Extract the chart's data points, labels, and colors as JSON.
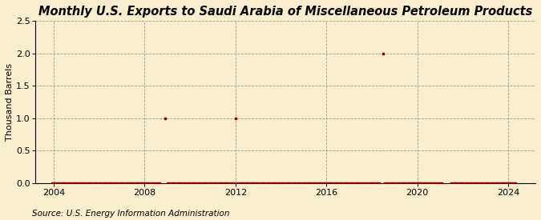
{
  "title": "Monthly U.S. Exports to Saudi Arabia of Miscellaneous Petroleum Products",
  "ylabel": "Thousand Barrels",
  "source": "Source: U.S. Energy Information Administration",
  "background_color": "#faeecf",
  "marker_color": "#8b0000",
  "ylim": [
    0,
    2.5
  ],
  "yticks": [
    0.0,
    0.5,
    1.0,
    1.5,
    2.0,
    2.5
  ],
  "xlim_start": 2003.2,
  "xlim_end": 2025.2,
  "xticks": [
    2004,
    2008,
    2012,
    2016,
    2020,
    2024
  ],
  "title_fontsize": 10.5,
  "ylabel_fontsize": 8,
  "tick_fontsize": 8,
  "source_fontsize": 7.5,
  "data_points": [
    {
      "date": 2003.917,
      "value": 0
    },
    {
      "date": 2004.0,
      "value": 0
    },
    {
      "date": 2004.083,
      "value": 0
    },
    {
      "date": 2004.167,
      "value": 0
    },
    {
      "date": 2004.25,
      "value": 0
    },
    {
      "date": 2004.333,
      "value": 0
    },
    {
      "date": 2004.417,
      "value": 0
    },
    {
      "date": 2004.5,
      "value": 0
    },
    {
      "date": 2004.583,
      "value": 0
    },
    {
      "date": 2004.667,
      "value": 0
    },
    {
      "date": 2004.75,
      "value": 0
    },
    {
      "date": 2004.833,
      "value": 0
    },
    {
      "date": 2004.917,
      "value": 0
    },
    {
      "date": 2005.0,
      "value": 0
    },
    {
      "date": 2005.083,
      "value": 0
    },
    {
      "date": 2005.167,
      "value": 0
    },
    {
      "date": 2005.25,
      "value": 0
    },
    {
      "date": 2005.333,
      "value": 0
    },
    {
      "date": 2005.417,
      "value": 0
    },
    {
      "date": 2005.5,
      "value": 0
    },
    {
      "date": 2005.583,
      "value": 0
    },
    {
      "date": 2005.667,
      "value": 0
    },
    {
      "date": 2005.75,
      "value": 0
    },
    {
      "date": 2005.833,
      "value": 0
    },
    {
      "date": 2005.917,
      "value": 0
    },
    {
      "date": 2006.0,
      "value": 0
    },
    {
      "date": 2006.083,
      "value": 0
    },
    {
      "date": 2006.167,
      "value": 0
    },
    {
      "date": 2006.25,
      "value": 0
    },
    {
      "date": 2006.333,
      "value": 0
    },
    {
      "date": 2006.417,
      "value": 0
    },
    {
      "date": 2006.5,
      "value": 0
    },
    {
      "date": 2006.583,
      "value": 0
    },
    {
      "date": 2006.667,
      "value": 0
    },
    {
      "date": 2006.75,
      "value": 0
    },
    {
      "date": 2006.833,
      "value": 0
    },
    {
      "date": 2006.917,
      "value": 0
    },
    {
      "date": 2007.0,
      "value": 0
    },
    {
      "date": 2007.083,
      "value": 0
    },
    {
      "date": 2007.167,
      "value": 0
    },
    {
      "date": 2007.25,
      "value": 0
    },
    {
      "date": 2007.333,
      "value": 0
    },
    {
      "date": 2007.417,
      "value": 0
    },
    {
      "date": 2007.5,
      "value": 0
    },
    {
      "date": 2007.583,
      "value": 0
    },
    {
      "date": 2007.667,
      "value": 0
    },
    {
      "date": 2007.75,
      "value": 0
    },
    {
      "date": 2007.833,
      "value": 0
    },
    {
      "date": 2007.917,
      "value": 0
    },
    {
      "date": 2008.0,
      "value": 0
    },
    {
      "date": 2008.083,
      "value": 0
    },
    {
      "date": 2008.167,
      "value": 0
    },
    {
      "date": 2008.25,
      "value": 0
    },
    {
      "date": 2008.333,
      "value": 0
    },
    {
      "date": 2008.417,
      "value": 0
    },
    {
      "date": 2008.5,
      "value": 0
    },
    {
      "date": 2008.583,
      "value": 0
    },
    {
      "date": 2008.667,
      "value": 0
    },
    {
      "date": 2008.917,
      "value": 1.0
    },
    {
      "date": 2009.0,
      "value": 0
    },
    {
      "date": 2009.083,
      "value": 0
    },
    {
      "date": 2009.167,
      "value": 0
    },
    {
      "date": 2009.25,
      "value": 0
    },
    {
      "date": 2009.333,
      "value": 0
    },
    {
      "date": 2009.417,
      "value": 0
    },
    {
      "date": 2009.5,
      "value": 0
    },
    {
      "date": 2009.583,
      "value": 0
    },
    {
      "date": 2009.667,
      "value": 0
    },
    {
      "date": 2009.75,
      "value": 0
    },
    {
      "date": 2009.833,
      "value": 0
    },
    {
      "date": 2009.917,
      "value": 0
    },
    {
      "date": 2010.0,
      "value": 0
    },
    {
      "date": 2010.083,
      "value": 0
    },
    {
      "date": 2010.167,
      "value": 0
    },
    {
      "date": 2010.25,
      "value": 0
    },
    {
      "date": 2010.333,
      "value": 0
    },
    {
      "date": 2010.417,
      "value": 0
    },
    {
      "date": 2010.5,
      "value": 0
    },
    {
      "date": 2010.583,
      "value": 0
    },
    {
      "date": 2010.667,
      "value": 0
    },
    {
      "date": 2010.75,
      "value": 0
    },
    {
      "date": 2010.833,
      "value": 0
    },
    {
      "date": 2010.917,
      "value": 0
    },
    {
      "date": 2011.0,
      "value": 0
    },
    {
      "date": 2011.083,
      "value": 0
    },
    {
      "date": 2011.167,
      "value": 0
    },
    {
      "date": 2011.25,
      "value": 0
    },
    {
      "date": 2011.333,
      "value": 0
    },
    {
      "date": 2011.417,
      "value": 0
    },
    {
      "date": 2011.5,
      "value": 0
    },
    {
      "date": 2011.583,
      "value": 0
    },
    {
      "date": 2011.667,
      "value": 0
    },
    {
      "date": 2011.75,
      "value": 0
    },
    {
      "date": 2011.833,
      "value": 0
    },
    {
      "date": 2011.917,
      "value": 0
    },
    {
      "date": 2012.0,
      "value": 1.0
    },
    {
      "date": 2012.083,
      "value": 0
    },
    {
      "date": 2012.167,
      "value": 0
    },
    {
      "date": 2012.25,
      "value": 0
    },
    {
      "date": 2012.333,
      "value": 0
    },
    {
      "date": 2012.417,
      "value": 0
    },
    {
      "date": 2012.5,
      "value": 0
    },
    {
      "date": 2012.583,
      "value": 0
    },
    {
      "date": 2012.667,
      "value": 0
    },
    {
      "date": 2012.75,
      "value": 0
    },
    {
      "date": 2012.833,
      "value": 0
    },
    {
      "date": 2012.917,
      "value": 0
    },
    {
      "date": 2013.0,
      "value": 0
    },
    {
      "date": 2013.083,
      "value": 0
    },
    {
      "date": 2013.167,
      "value": 0
    },
    {
      "date": 2013.25,
      "value": 0
    },
    {
      "date": 2013.333,
      "value": 0
    },
    {
      "date": 2013.417,
      "value": 0
    },
    {
      "date": 2013.5,
      "value": 0
    },
    {
      "date": 2013.583,
      "value": 0
    },
    {
      "date": 2013.667,
      "value": 0
    },
    {
      "date": 2013.75,
      "value": 0
    },
    {
      "date": 2013.833,
      "value": 0
    },
    {
      "date": 2013.917,
      "value": 0
    },
    {
      "date": 2014.0,
      "value": 0
    },
    {
      "date": 2014.083,
      "value": 0
    },
    {
      "date": 2014.167,
      "value": 0
    },
    {
      "date": 2014.25,
      "value": 0
    },
    {
      "date": 2014.333,
      "value": 0
    },
    {
      "date": 2014.417,
      "value": 0
    },
    {
      "date": 2014.5,
      "value": 0
    },
    {
      "date": 2014.583,
      "value": 0
    },
    {
      "date": 2014.667,
      "value": 0
    },
    {
      "date": 2014.75,
      "value": 0
    },
    {
      "date": 2014.833,
      "value": 0
    },
    {
      "date": 2014.917,
      "value": 0
    },
    {
      "date": 2015.0,
      "value": 0
    },
    {
      "date": 2015.083,
      "value": 0
    },
    {
      "date": 2015.167,
      "value": 0
    },
    {
      "date": 2015.25,
      "value": 0
    },
    {
      "date": 2015.333,
      "value": 0
    },
    {
      "date": 2015.417,
      "value": 0
    },
    {
      "date": 2015.5,
      "value": 0
    },
    {
      "date": 2015.583,
      "value": 0
    },
    {
      "date": 2015.667,
      "value": 0
    },
    {
      "date": 2015.75,
      "value": 0
    },
    {
      "date": 2015.833,
      "value": 0
    },
    {
      "date": 2015.917,
      "value": 0
    },
    {
      "date": 2016.0,
      "value": 0
    },
    {
      "date": 2016.083,
      "value": 0
    },
    {
      "date": 2016.167,
      "value": 0
    },
    {
      "date": 2016.25,
      "value": 0
    },
    {
      "date": 2016.333,
      "value": 0
    },
    {
      "date": 2016.417,
      "value": 0
    },
    {
      "date": 2016.5,
      "value": 0
    },
    {
      "date": 2016.583,
      "value": 0
    },
    {
      "date": 2016.667,
      "value": 0
    },
    {
      "date": 2016.75,
      "value": 0
    },
    {
      "date": 2016.833,
      "value": 0
    },
    {
      "date": 2016.917,
      "value": 0
    },
    {
      "date": 2017.0,
      "value": 0
    },
    {
      "date": 2017.083,
      "value": 0
    },
    {
      "date": 2017.167,
      "value": 0
    },
    {
      "date": 2017.25,
      "value": 0
    },
    {
      "date": 2017.333,
      "value": 0
    },
    {
      "date": 2017.417,
      "value": 0
    },
    {
      "date": 2017.5,
      "value": 0
    },
    {
      "date": 2017.583,
      "value": 0
    },
    {
      "date": 2017.667,
      "value": 0
    },
    {
      "date": 2017.75,
      "value": 0
    },
    {
      "date": 2017.833,
      "value": 0
    },
    {
      "date": 2017.917,
      "value": 0
    },
    {
      "date": 2018.0,
      "value": 0
    },
    {
      "date": 2018.083,
      "value": 0
    },
    {
      "date": 2018.167,
      "value": 0
    },
    {
      "date": 2018.25,
      "value": 0
    },
    {
      "date": 2018.333,
      "value": 0
    },
    {
      "date": 2018.5,
      "value": 2.0
    },
    {
      "date": 2018.583,
      "value": 0
    },
    {
      "date": 2018.667,
      "value": 0
    },
    {
      "date": 2018.75,
      "value": 0
    },
    {
      "date": 2018.833,
      "value": 0
    },
    {
      "date": 2018.917,
      "value": 0
    },
    {
      "date": 2019.0,
      "value": 0
    },
    {
      "date": 2019.083,
      "value": 0
    },
    {
      "date": 2019.167,
      "value": 0
    },
    {
      "date": 2019.25,
      "value": 0
    },
    {
      "date": 2019.333,
      "value": 0
    },
    {
      "date": 2019.417,
      "value": 0
    },
    {
      "date": 2019.5,
      "value": 0
    },
    {
      "date": 2019.583,
      "value": 0
    },
    {
      "date": 2019.667,
      "value": 0
    },
    {
      "date": 2019.75,
      "value": 0
    },
    {
      "date": 2019.833,
      "value": 0
    },
    {
      "date": 2019.917,
      "value": 0
    },
    {
      "date": 2020.0,
      "value": 0
    },
    {
      "date": 2020.083,
      "value": 0
    },
    {
      "date": 2020.167,
      "value": 0
    },
    {
      "date": 2020.25,
      "value": 0
    },
    {
      "date": 2020.333,
      "value": 0
    },
    {
      "date": 2020.417,
      "value": 0
    },
    {
      "date": 2020.5,
      "value": 0
    },
    {
      "date": 2020.583,
      "value": 0
    },
    {
      "date": 2020.667,
      "value": 0
    },
    {
      "date": 2020.75,
      "value": 0
    },
    {
      "date": 2020.833,
      "value": 0
    },
    {
      "date": 2020.917,
      "value": 0
    },
    {
      "date": 2021.0,
      "value": 0
    },
    {
      "date": 2021.083,
      "value": 0
    },
    {
      "date": 2021.5,
      "value": 0
    },
    {
      "date": 2021.583,
      "value": 0
    },
    {
      "date": 2021.667,
      "value": 0
    },
    {
      "date": 2021.75,
      "value": 0
    },
    {
      "date": 2021.833,
      "value": 0
    },
    {
      "date": 2021.917,
      "value": 0
    },
    {
      "date": 2022.0,
      "value": 0
    },
    {
      "date": 2022.083,
      "value": 0
    },
    {
      "date": 2022.167,
      "value": 0
    },
    {
      "date": 2022.25,
      "value": 0
    },
    {
      "date": 2022.333,
      "value": 0
    },
    {
      "date": 2022.417,
      "value": 0
    },
    {
      "date": 2022.5,
      "value": 0
    },
    {
      "date": 2022.583,
      "value": 0
    },
    {
      "date": 2022.667,
      "value": 0
    },
    {
      "date": 2022.75,
      "value": 0
    },
    {
      "date": 2022.833,
      "value": 0
    },
    {
      "date": 2022.917,
      "value": 0
    },
    {
      "date": 2023.0,
      "value": 0
    },
    {
      "date": 2023.083,
      "value": 0
    },
    {
      "date": 2023.167,
      "value": 0
    },
    {
      "date": 2023.25,
      "value": 0
    },
    {
      "date": 2023.333,
      "value": 0
    },
    {
      "date": 2023.417,
      "value": 0
    },
    {
      "date": 2023.5,
      "value": 0
    },
    {
      "date": 2023.583,
      "value": 0
    },
    {
      "date": 2023.667,
      "value": 0
    },
    {
      "date": 2023.75,
      "value": 0
    },
    {
      "date": 2023.833,
      "value": 0
    },
    {
      "date": 2023.917,
      "value": 0
    },
    {
      "date": 2024.0,
      "value": 0
    },
    {
      "date": 2024.083,
      "value": 0
    },
    {
      "date": 2024.167,
      "value": 0
    },
    {
      "date": 2024.25,
      "value": 0
    },
    {
      "date": 2024.333,
      "value": 0
    }
  ]
}
